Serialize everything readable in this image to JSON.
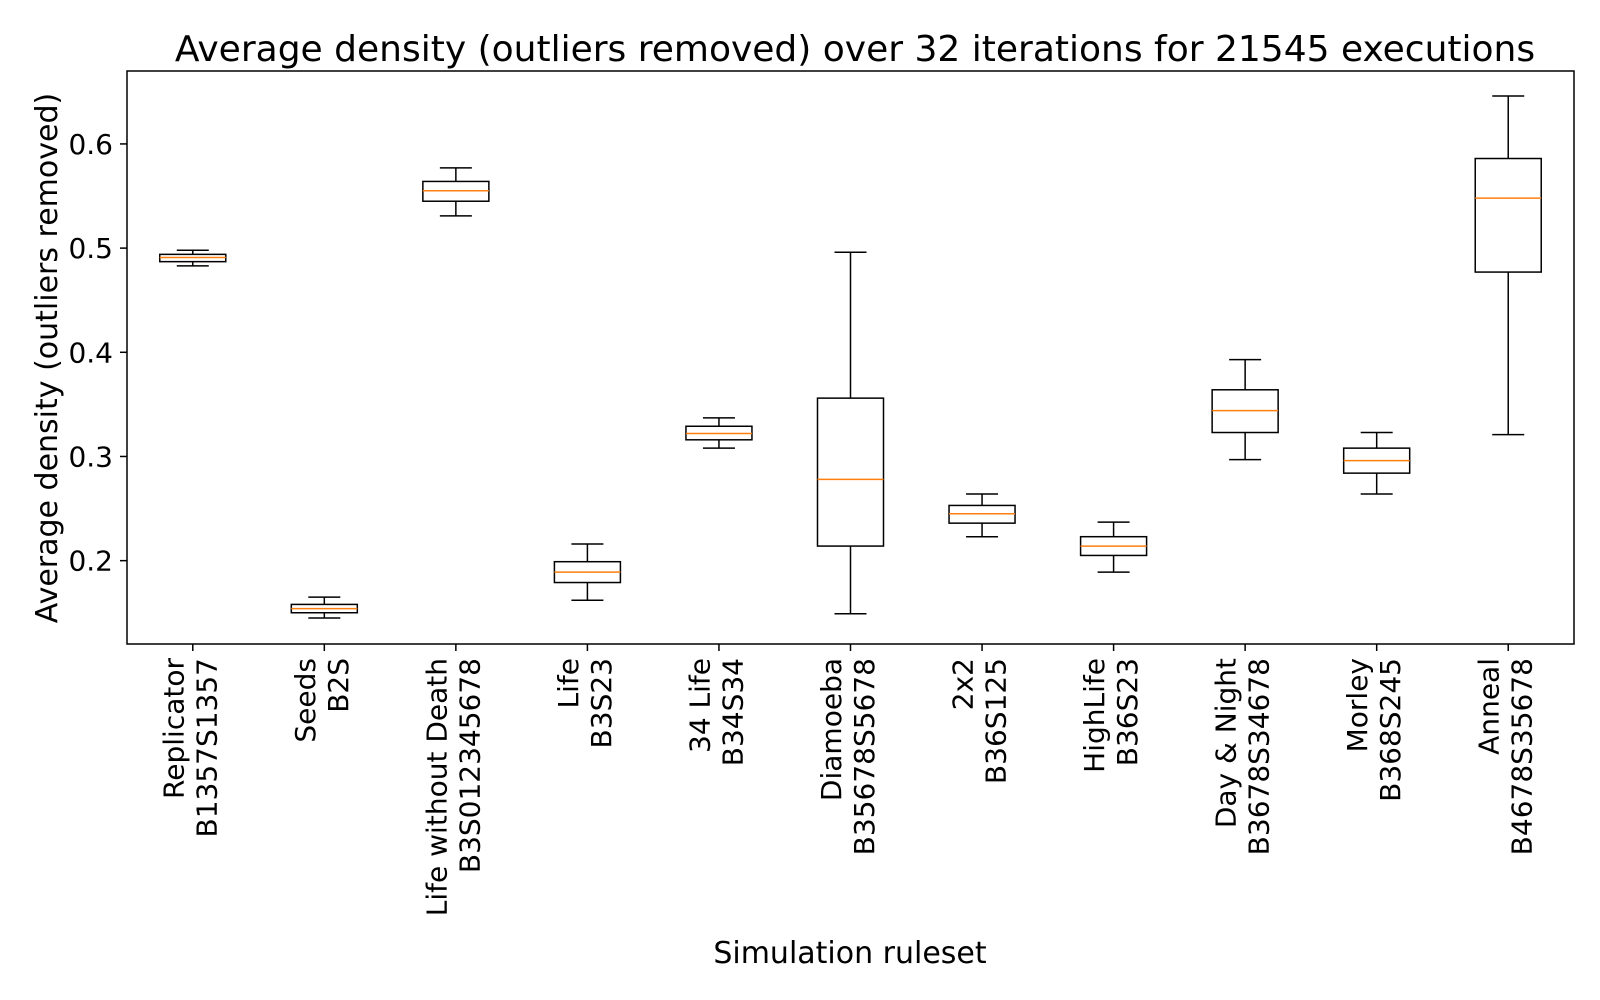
{
  "chart_data": {
    "type": "box",
    "title": "Average density (outliers removed) over 32 iterations for 21545 executions",
    "xlabel": "Simulation ruleset",
    "ylabel": "Average density (outliers removed)",
    "ylim": [
      0.12,
      0.67
    ],
    "yticks": [
      0.2,
      0.3,
      0.4,
      0.5,
      0.6
    ],
    "ytick_labels": [
      "0.2",
      "0.3",
      "0.4",
      "0.5",
      "0.6"
    ],
    "grid": false,
    "colors": {
      "box": "#000000",
      "median": "#ff7f0e"
    },
    "categories": [
      {
        "lines": [
          "Replicator",
          "B1357S1357"
        ],
        "whislo": 0.483,
        "q1": 0.487,
        "median": 0.491,
        "q3": 0.494,
        "whishi": 0.498
      },
      {
        "lines": [
          "Seeds",
          "B2S"
        ],
        "whislo": 0.145,
        "q1": 0.15,
        "median": 0.154,
        "q3": 0.158,
        "whishi": 0.165
      },
      {
        "lines": [
          "Life without Death",
          "B3S012345678"
        ],
        "whislo": 0.531,
        "q1": 0.545,
        "median": 0.555,
        "q3": 0.564,
        "whishi": 0.577
      },
      {
        "lines": [
          "Life",
          "B3S23"
        ],
        "whislo": 0.162,
        "q1": 0.179,
        "median": 0.189,
        "q3": 0.199,
        "whishi": 0.216
      },
      {
        "lines": [
          "34 Life",
          "B34S34"
        ],
        "whislo": 0.308,
        "q1": 0.316,
        "median": 0.322,
        "q3": 0.329,
        "whishi": 0.337
      },
      {
        "lines": [
          "Diamoeba",
          "B35678S5678"
        ],
        "whislo": 0.149,
        "q1": 0.214,
        "median": 0.278,
        "q3": 0.356,
        "whishi": 0.496
      },
      {
        "lines": [
          "2x2",
          "B36S125"
        ],
        "whislo": 0.223,
        "q1": 0.236,
        "median": 0.245,
        "q3": 0.253,
        "whishi": 0.264
      },
      {
        "lines": [
          "HighLife",
          "B36S23"
        ],
        "whislo": 0.189,
        "q1": 0.205,
        "median": 0.214,
        "q3": 0.223,
        "whishi": 0.237
      },
      {
        "lines": [
          "Day & Night",
          "B3678S34678"
        ],
        "whislo": 0.297,
        "q1": 0.323,
        "median": 0.344,
        "q3": 0.364,
        "whishi": 0.393
      },
      {
        "lines": [
          "Morley",
          "B368S245"
        ],
        "whislo": 0.264,
        "q1": 0.284,
        "median": 0.296,
        "q3": 0.308,
        "whishi": 0.323
      },
      {
        "lines": [
          "Anneal",
          "B4678S35678"
        ],
        "whislo": 0.321,
        "q1": 0.477,
        "median": 0.548,
        "q3": 0.586,
        "whishi": 0.646
      }
    ]
  }
}
